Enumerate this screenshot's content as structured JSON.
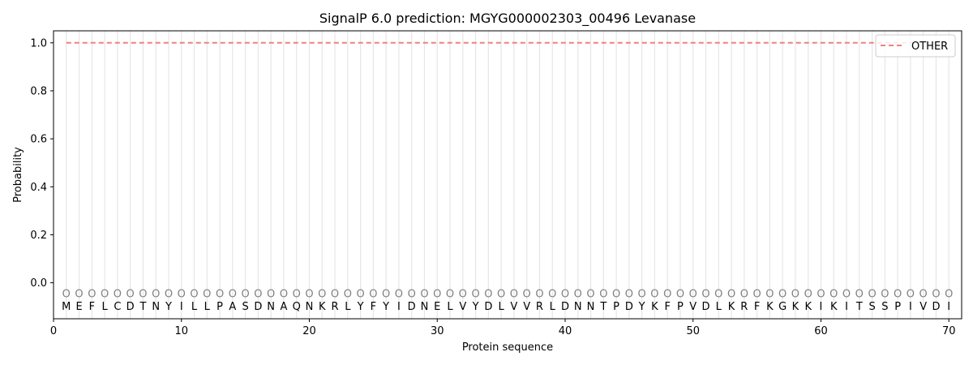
{
  "chart_data": {
    "type": "line",
    "title": "SignalP 6.0 prediction: MGYG000002303_00496 Levanase",
    "xlabel": "Protein sequence",
    "ylabel": "Probability",
    "xlim": [
      0,
      71
    ],
    "ylim": [
      -0.15,
      1.05
    ],
    "xticks": [
      0,
      10,
      20,
      30,
      40,
      50,
      60,
      70
    ],
    "yticks": [
      0.0,
      0.2,
      0.4,
      0.6,
      0.8,
      1.0
    ],
    "grid": "vertical lines at each residue",
    "legend_position": "top-right",
    "sequence": [
      "M",
      "E",
      "F",
      "L",
      "C",
      "D",
      "T",
      "N",
      "Y",
      "I",
      "L",
      "L",
      "P",
      "A",
      "S",
      "D",
      "N",
      "A",
      "Q",
      "N",
      "K",
      "R",
      "L",
      "Y",
      "F",
      "Y",
      "I",
      "D",
      "N",
      "E",
      "L",
      "V",
      "Y",
      "D",
      "L",
      "V",
      "V",
      "R",
      "L",
      "D",
      "N",
      "N",
      "T",
      "P",
      "D",
      "Y",
      "K",
      "F",
      "P",
      "V",
      "D",
      "L",
      "K",
      "R",
      "F",
      "K",
      "G",
      "K",
      "K",
      "I",
      "K",
      "I",
      "T",
      "S",
      "S",
      "P",
      "I",
      "V",
      "D",
      "I"
    ],
    "state_marker": "O",
    "marker_y": -0.045,
    "series": [
      {
        "name": "OTHER",
        "style": "dashed",
        "color": "#f08080",
        "x_start": 1,
        "x_end": 70,
        "value": 1.0
      }
    ]
  }
}
